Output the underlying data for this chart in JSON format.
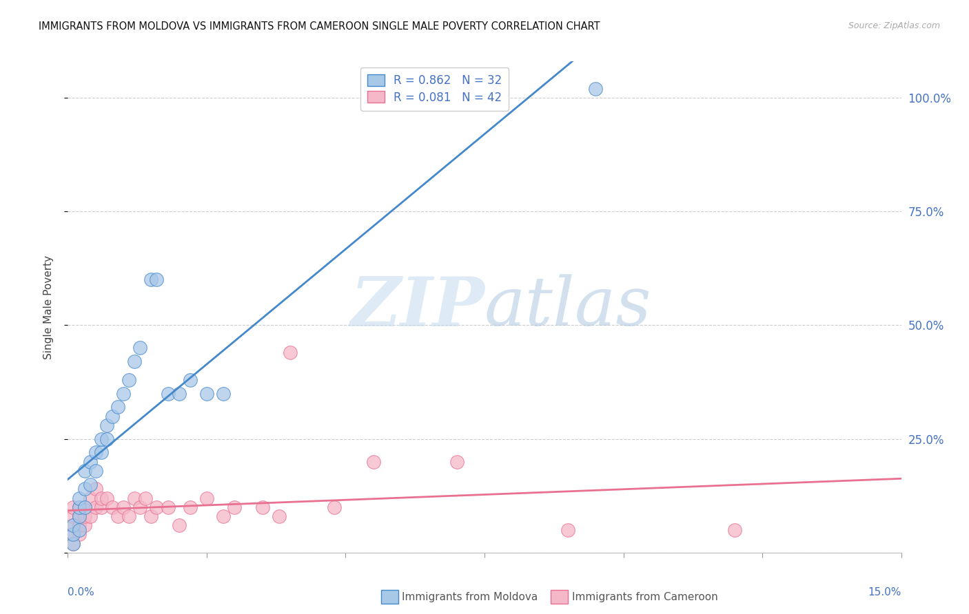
{
  "title": "IMMIGRANTS FROM MOLDOVA VS IMMIGRANTS FROM CAMEROON SINGLE MALE POVERTY CORRELATION CHART",
  "source": "Source: ZipAtlas.com",
  "ylabel": "Single Male Poverty",
  "right_yticks": [
    "100.0%",
    "75.0%",
    "50.0%",
    "25.0%"
  ],
  "right_ytick_vals": [
    1.0,
    0.75,
    0.5,
    0.25
  ],
  "moldova_color": "#a8c8e8",
  "cameroon_color": "#f4b8c8",
  "moldova_line_color": "#4488cc",
  "cameroon_line_color": "#e87090",
  "moldova_R": 0.862,
  "moldova_N": 32,
  "cameroon_R": 0.081,
  "cameroon_N": 42,
  "moldova_x": [
    0.001,
    0.001,
    0.001,
    0.002,
    0.002,
    0.002,
    0.002,
    0.003,
    0.003,
    0.003,
    0.004,
    0.004,
    0.005,
    0.005,
    0.006,
    0.006,
    0.007,
    0.007,
    0.008,
    0.009,
    0.01,
    0.011,
    0.012,
    0.013,
    0.015,
    0.016,
    0.018,
    0.02,
    0.022,
    0.025,
    0.028,
    0.095
  ],
  "moldova_y": [
    0.02,
    0.04,
    0.06,
    0.05,
    0.08,
    0.1,
    0.12,
    0.1,
    0.14,
    0.18,
    0.15,
    0.2,
    0.18,
    0.22,
    0.22,
    0.25,
    0.25,
    0.28,
    0.3,
    0.32,
    0.35,
    0.38,
    0.42,
    0.45,
    0.6,
    0.6,
    0.35,
    0.35,
    0.38,
    0.35,
    0.35,
    1.02
  ],
  "cameroon_x": [
    0.001,
    0.001,
    0.001,
    0.001,
    0.001,
    0.002,
    0.002,
    0.002,
    0.002,
    0.003,
    0.003,
    0.003,
    0.004,
    0.004,
    0.005,
    0.005,
    0.006,
    0.006,
    0.007,
    0.008,
    0.009,
    0.01,
    0.011,
    0.012,
    0.013,
    0.014,
    0.015,
    0.016,
    0.018,
    0.02,
    0.022,
    0.025,
    0.028,
    0.03,
    0.035,
    0.038,
    0.04,
    0.048,
    0.055,
    0.07,
    0.09,
    0.12
  ],
  "cameroon_y": [
    0.02,
    0.04,
    0.06,
    0.08,
    0.1,
    0.04,
    0.06,
    0.08,
    0.1,
    0.06,
    0.08,
    0.1,
    0.08,
    0.12,
    0.1,
    0.14,
    0.1,
    0.12,
    0.12,
    0.1,
    0.08,
    0.1,
    0.08,
    0.12,
    0.1,
    0.12,
    0.08,
    0.1,
    0.1,
    0.06,
    0.1,
    0.12,
    0.08,
    0.1,
    0.1,
    0.08,
    0.44,
    0.1,
    0.2,
    0.2,
    0.05,
    0.05
  ],
  "xlim": [
    0.0,
    0.15
  ],
  "ylim": [
    0.0,
    1.08
  ],
  "grid_color": "#cccccc",
  "background_color": "#ffffff"
}
